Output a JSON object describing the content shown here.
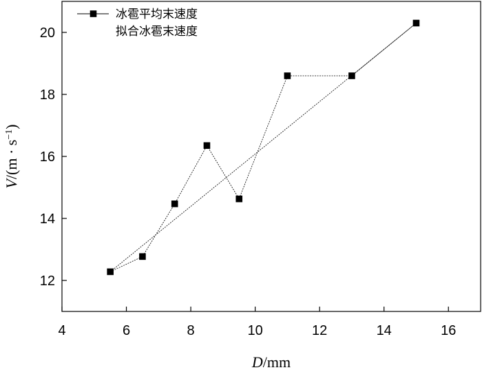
{
  "chart_data": {
    "type": "line",
    "title": "",
    "xlabel_italic": "D",
    "xlabel_rest": "/mm",
    "ylabel_italic": "V",
    "ylabel_rest": "/(m · s",
    "ylabel_exp": "−1",
    "ylabel_close": ")",
    "xlim": [
      4,
      17
    ],
    "ylim": [
      11,
      21
    ],
    "x_ticks": [
      4,
      6,
      8,
      10,
      12,
      14,
      16
    ],
    "y_ticks": [
      12,
      14,
      16,
      18,
      20
    ],
    "grid": false,
    "legend_position": "top-left",
    "series": [
      {
        "name": "冰雹平均末速度",
        "style": "line-square-markers",
        "x": [
          5.5,
          6.5,
          7.5,
          8.5,
          9.5,
          11.0,
          13.0,
          15.0
        ],
        "y": [
          12.28,
          12.77,
          14.47,
          16.35,
          14.63,
          18.6,
          18.6,
          20.3
        ]
      },
      {
        "name": "拟合冰雹末速度",
        "style": "dashed-line",
        "x": [
          5.5,
          15.0
        ],
        "y": [
          12.28,
          20.3
        ]
      }
    ]
  }
}
